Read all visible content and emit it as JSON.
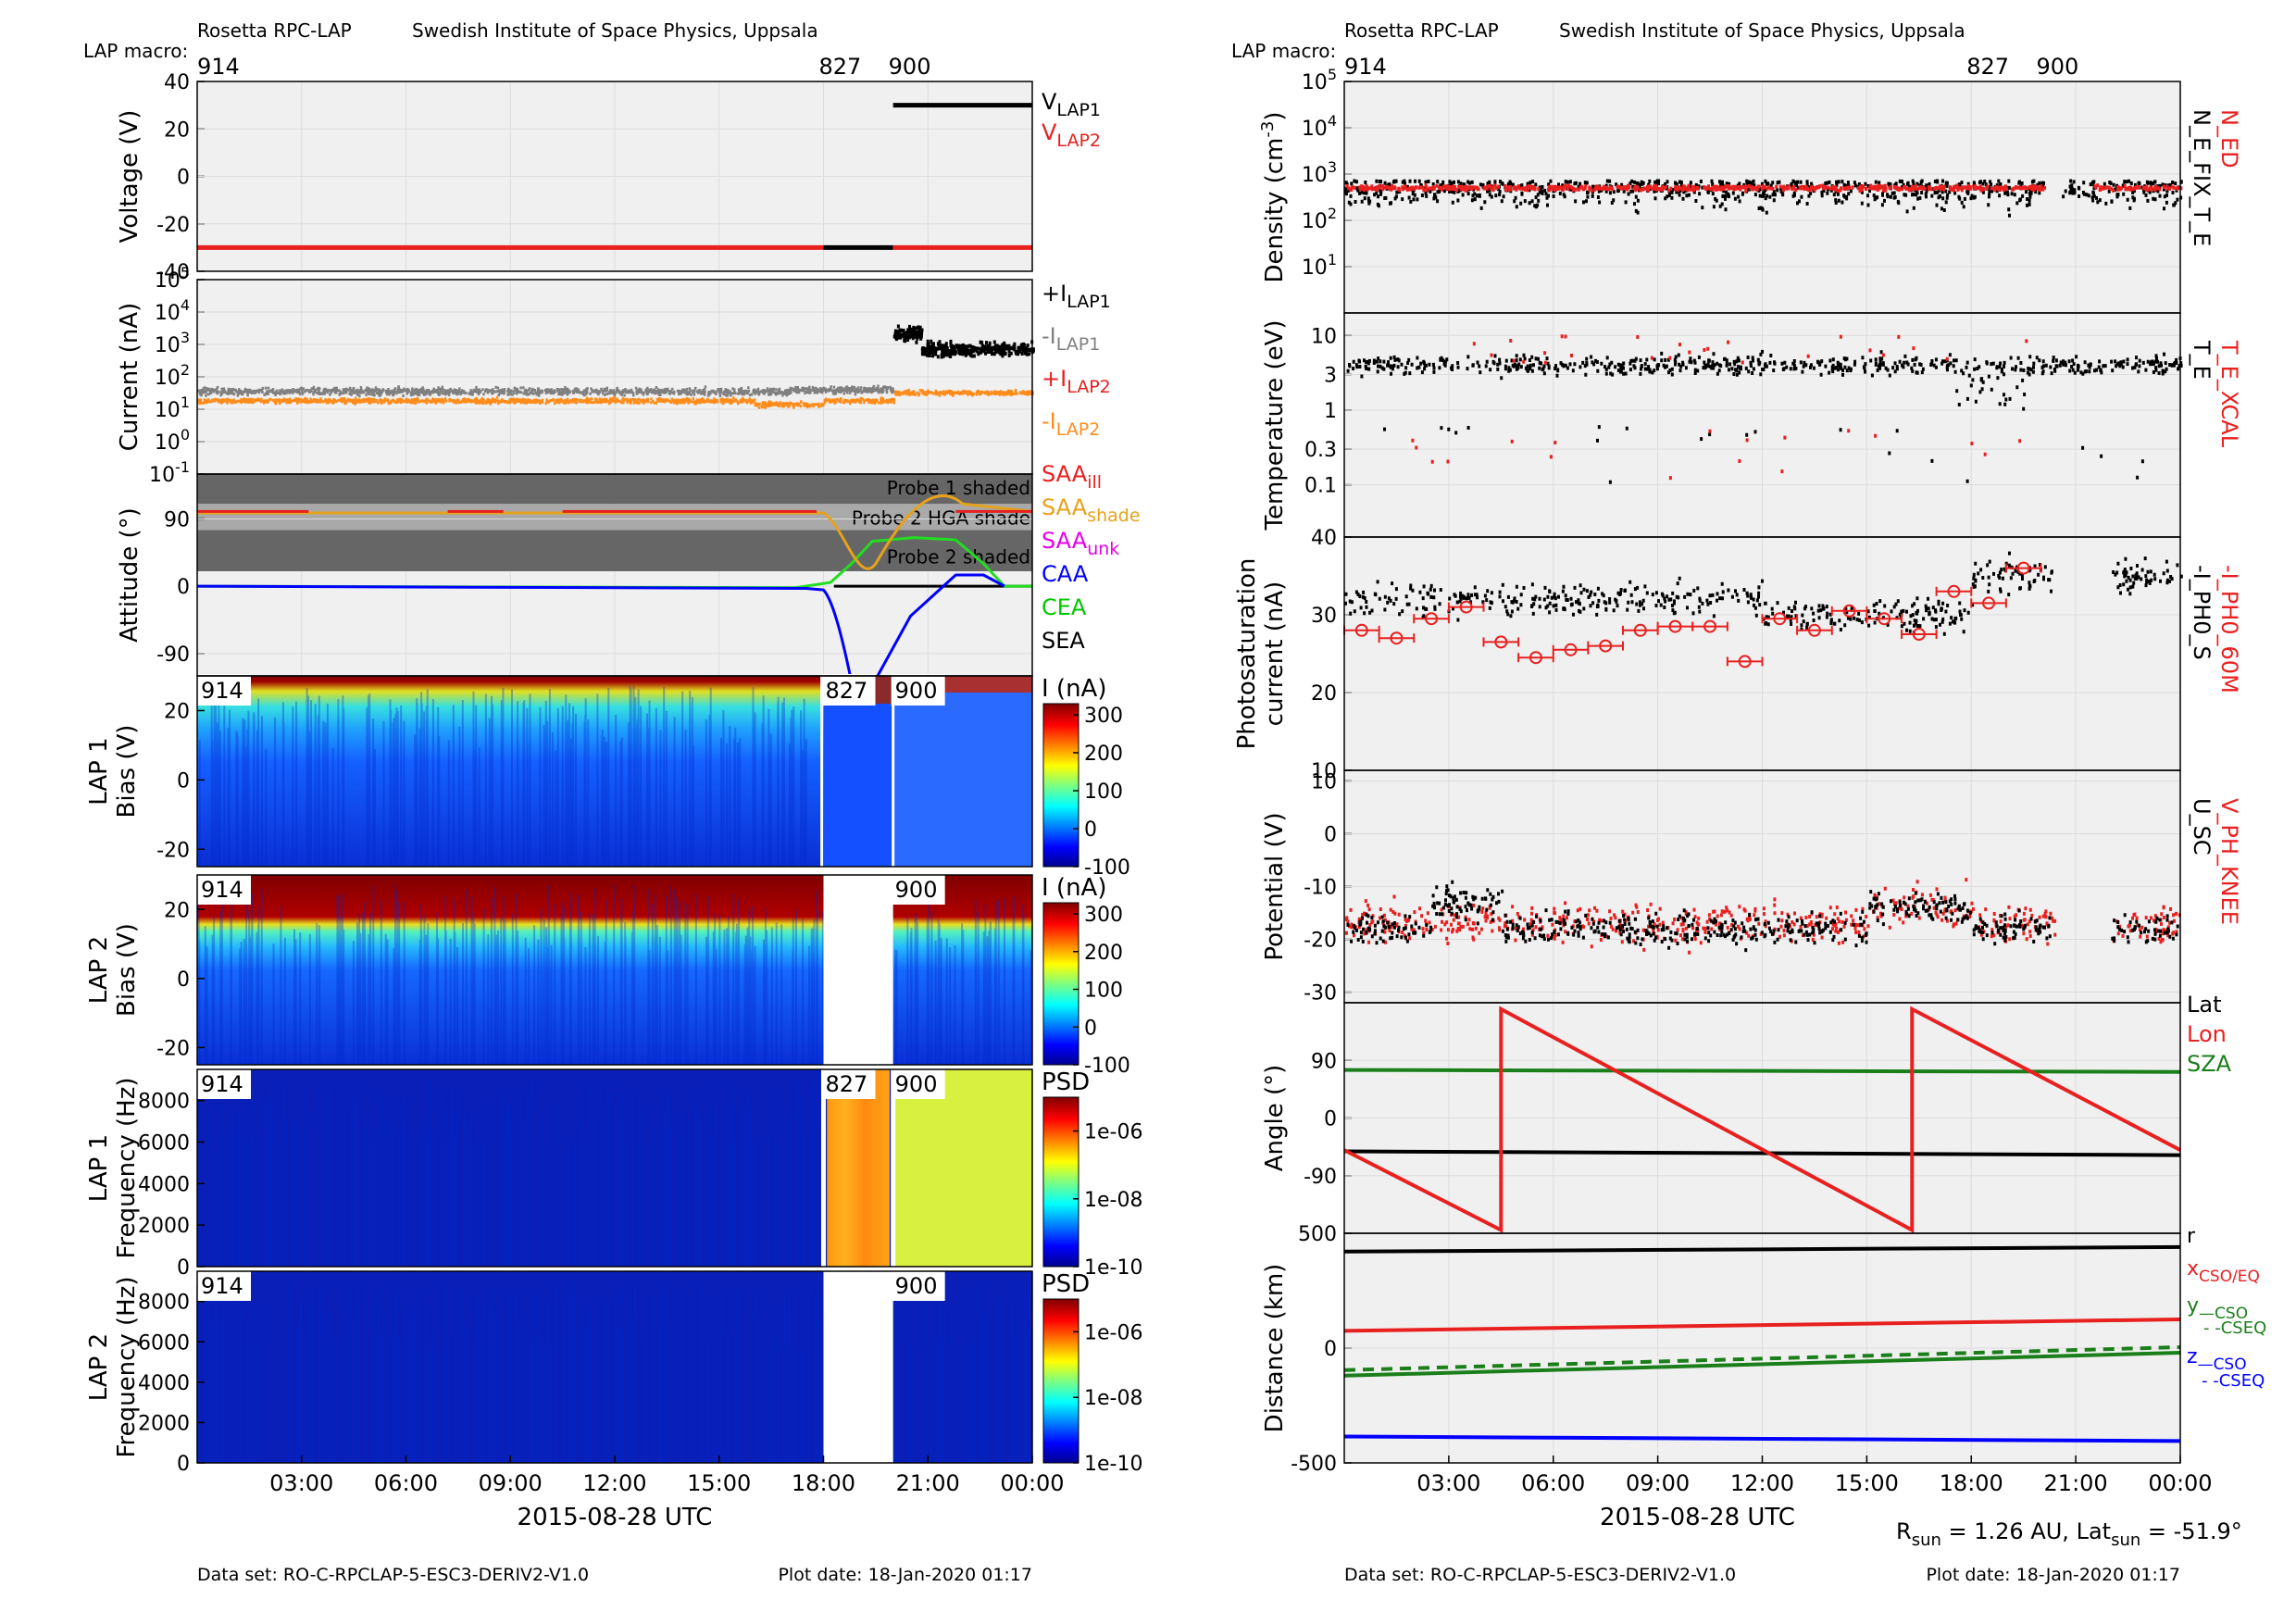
{
  "header": {
    "left_title": "Rosetta RPC-LAP",
    "left_institute": "Swedish Institute of Space Physics, Uppsala",
    "right_title": "Rosetta RPC-LAP",
    "right_institute": "Swedish Institute of Space Physics, Uppsala",
    "macro_label": "LAP macro:",
    "macros": [
      {
        "label": "914",
        "hour": 0
      },
      {
        "label": "827",
        "hour": 18
      },
      {
        "label": "900",
        "hour": 20
      }
    ]
  },
  "footer": {
    "dataset": "Data set: RO-C-RPCLAP-5-ESC3-DERIV2-V1.0",
    "plot_date": "Plot date: 18-Jan-2020 01:17",
    "xlabel": "2015-08-28 UTC",
    "rsun_text": "R",
    "rsun_sub": "sun",
    "rsun_val": " = 1.26 AU, Lat",
    "lat_sub": "sun",
    "lat_val": " = -51.9°"
  },
  "time_ticks": [
    "03:00",
    "06:00",
    "09:00",
    "12:00",
    "15:00",
    "18:00",
    "21:00",
    "00:00"
  ],
  "colors": {
    "panel_bg": "#f0f0f0",
    "red": "#e8201f",
    "black": "#000000",
    "gray": "#808080",
    "orange": "#ff8c1a",
    "green": "#00c800",
    "dkgreen": "#1a7f1a",
    "blue": "#0000ff",
    "magenta": "#e600e6",
    "gold": "#e6a21a",
    "shade": "#555555"
  },
  "chart_data": [
    {
      "id": "voltage",
      "type": "line",
      "ylabel": "Voltage (V)",
      "ylim": [
        -40,
        40
      ],
      "yticks": [
        "40",
        "20",
        "0",
        "-20",
        "-40"
      ],
      "legend": [
        {
          "name": "V",
          "sub": "LAP1",
          "color": "black"
        },
        {
          "name": "V",
          "sub": "LAP2",
          "color": "red"
        }
      ],
      "series": [
        {
          "name": "VLAP1",
          "color": "black",
          "segments": [
            [
              20,
              24,
              30
            ],
            [
              18,
              20,
              -30
            ]
          ]
        },
        {
          "name": "VLAP2",
          "color": "red",
          "segments": [
            [
              0,
              18,
              -30
            ],
            [
              20,
              24,
              -30
            ]
          ]
        }
      ]
    },
    {
      "id": "current",
      "type": "scatter",
      "ylabel": "Current (nA)",
      "yscale": "log",
      "ylim": [
        0.1,
        100000
      ],
      "yticks": [
        {
          "base": "10",
          "exp": "5"
        },
        {
          "base": "10",
          "exp": "4"
        },
        {
          "base": "10",
          "exp": "3"
        },
        {
          "base": "10",
          "exp": "2"
        },
        {
          "base": "10",
          "exp": "1"
        },
        {
          "base": "10",
          "exp": "0"
        },
        {
          "base": "10",
          "exp": "-1"
        }
      ],
      "legend": [
        {
          "name": "+I",
          "sub": "LAP1",
          "color": "black"
        },
        {
          "name": "-I",
          "sub": "LAP1",
          "color": "gray"
        },
        {
          "name": "+I",
          "sub": "LAP2",
          "color": "red"
        },
        {
          "name": "-I",
          "sub": "LAP2",
          "color": "orange"
        }
      ],
      "series": [
        {
          "name": "+ILAP1",
          "color": "black",
          "from": 20.0,
          "to": 24,
          "level": 800
        },
        {
          "name": "-ILAP1",
          "color": "gray",
          "from": 0,
          "to": 20,
          "level": 35
        },
        {
          "name": "-ILAP2",
          "color": "orange",
          "from": 0,
          "to": 24,
          "level": 20
        }
      ]
    },
    {
      "id": "attitude",
      "type": "line",
      "ylabel": "Attitude (°)",
      "ylim": [
        -120,
        150
      ],
      "yticks": [
        "90",
        "0",
        "-90"
      ],
      "shaded_bands": [
        {
          "text": "Probe 1 shaded",
          "from": 110,
          "to": 150
        },
        {
          "text": "Probe 2 HGA shade",
          "from": 65,
          "to": 110
        },
        {
          "text": "Probe 2 shaded",
          "from": 20,
          "to": 70
        }
      ],
      "legend": [
        {
          "name": "SAA",
          "sub": "ill",
          "color": "red"
        },
        {
          "name": "SAA",
          "sub": "shade",
          "color": "gold"
        },
        {
          "name": "SAA",
          "sub": "unk",
          "color": "magenta"
        },
        {
          "name": "CAA",
          "sub": "",
          "color": "blue"
        },
        {
          "name": "CEA",
          "sub": "",
          "color": "green"
        },
        {
          "name": "SEA",
          "sub": "",
          "color": "black"
        }
      ]
    },
    {
      "id": "lap1_bias",
      "type": "heatmap",
      "ylabel": "LAP 1\nBias (V)",
      "ylim": [
        -25,
        30
      ],
      "yticks": [
        "20",
        "0",
        "-20"
      ],
      "colorbar": {
        "label": "I (nA)",
        "ticks": [
          "300",
          "200",
          "100",
          "0",
          "-100"
        ]
      },
      "macro_tags": [
        "914",
        "827",
        "900"
      ]
    },
    {
      "id": "lap2_bias",
      "type": "heatmap",
      "ylabel": "LAP 2\nBias (V)",
      "ylim": [
        -25,
        30
      ],
      "yticks": [
        "20",
        "0",
        "-20"
      ],
      "colorbar": {
        "label": "I (nA)",
        "ticks": [
          "300",
          "200",
          "100",
          "0",
          "-100"
        ]
      },
      "macro_tags": [
        "914",
        "900"
      ]
    },
    {
      "id": "lap1_freq",
      "type": "heatmap",
      "ylabel": "LAP 1\nFrequency (Hz)",
      "ylim": [
        0,
        9500
      ],
      "yticks": [
        "8000",
        "6000",
        "4000",
        "2000",
        "0"
      ],
      "colorbar": {
        "label": "PSD",
        "ticks": [
          "1e-06",
          "1e-08",
          "1e-10"
        ]
      },
      "macro_tags": [
        "914",
        "827",
        "900"
      ]
    },
    {
      "id": "lap2_freq",
      "type": "heatmap",
      "ylabel": "LAP 2\nFrequency (Hz)",
      "ylim": [
        0,
        9500
      ],
      "yticks": [
        "8000",
        "6000",
        "4000",
        "2000",
        "0"
      ],
      "colorbar": {
        "label": "PSD",
        "ticks": [
          "1e-06",
          "1e-08",
          "1e-10"
        ]
      },
      "macro_tags": [
        "914",
        "900"
      ]
    },
    {
      "id": "density",
      "type": "scatter",
      "ylabel": "Density (cm",
      "ylabel_sup": "-3",
      "ylabel_end": ")",
      "yscale": "log",
      "ylim": [
        1,
        100000
      ],
      "yticks": [
        {
          "base": "10",
          "exp": "5"
        },
        {
          "base": "10",
          "exp": "4"
        },
        {
          "base": "10",
          "exp": "3"
        },
        {
          "base": "10",
          "exp": "2"
        },
        {
          "base": "10",
          "exp": "1"
        }
      ],
      "legend": [
        {
          "name": "N_ED",
          "color": "red"
        },
        {
          "name": "N_E_FIX_T_E",
          "color": "black"
        }
      ]
    },
    {
      "id": "temperature",
      "type": "scatter",
      "ylabel": "Temperature (eV)",
      "yscale": "log",
      "ylim": [
        0.02,
        20
      ],
      "yticks": [
        "10",
        "3",
        "1",
        "0.3",
        "0.1"
      ],
      "legend": [
        {
          "name": "T_E_XCAL",
          "color": "red"
        },
        {
          "name": "T_E",
          "color": "black"
        }
      ]
    },
    {
      "id": "photosat",
      "type": "scatter",
      "ylabel": "Photosaturation\ncurrent (nA)",
      "ylim": [
        10,
        40
      ],
      "yticks": [
        "40",
        "30",
        "20",
        "10"
      ],
      "legend": [
        {
          "name": "-I_PH0_60M",
          "color": "red"
        },
        {
          "name": "-I_PH0_S",
          "color": "black"
        }
      ],
      "series": [
        {
          "name": "-I_PH0_60M",
          "x": [
            0.5,
            1.5,
            2.5,
            3.5,
            4.5,
            5.5,
            6.5,
            7.5,
            8.5,
            9.5,
            10.5,
            11.5,
            12.5,
            13.5,
            14.5,
            15.5,
            16.5,
            17.5,
            18.5,
            19.5
          ],
          "y": [
            28,
            27,
            29.5,
            31,
            26.5,
            24.5,
            25.5,
            26,
            28,
            28.5,
            28.5,
            24,
            29.5,
            28,
            30.5,
            29.5,
            27.5,
            33,
            31.5,
            36
          ]
        }
      ]
    },
    {
      "id": "potential",
      "type": "scatter",
      "ylabel": "Potential (V)",
      "ylim": [
        -32,
        12
      ],
      "yticks": [
        "10",
        "0",
        "-10",
        "-20",
        "-30"
      ],
      "legend": [
        {
          "name": "V_PH_KNEE",
          "color": "red"
        },
        {
          "name": "U_SC",
          "color": "black"
        }
      ]
    },
    {
      "id": "angle",
      "type": "line",
      "ylabel": "Angle (°)",
      "ylim": [
        -180,
        180
      ],
      "yticks": [
        "90",
        "0",
        "-90"
      ],
      "legend": [
        {
          "name": "Lat",
          "color": "black"
        },
        {
          "name": "Lon",
          "color": "red"
        },
        {
          "name": "SZA",
          "color": "dkgreen"
        }
      ],
      "series": [
        {
          "name": "Lat",
          "x": [
            0,
            24
          ],
          "y": [
            -52,
            -58
          ]
        },
        {
          "name": "SZA",
          "x": [
            0,
            24
          ],
          "y": [
            75,
            72
          ]
        },
        {
          "name": "Lon",
          "x": [
            0,
            4.5,
            4.5,
            16.3,
            16.3,
            24
          ],
          "y": [
            -50,
            -175,
            170,
            -175,
            170,
            -50
          ]
        }
      ]
    },
    {
      "id": "distance",
      "type": "line",
      "ylabel": "Distance (km)",
      "ylim": [
        -500,
        500
      ],
      "yticks": [
        "500",
        "0",
        "-500"
      ],
      "legend": [
        {
          "name": "r",
          "sub": "",
          "color": "black"
        },
        {
          "name": "x",
          "sub": "CSO/EQ",
          "color": "red"
        },
        {
          "name": "y",
          "sub": "—CSO",
          "color": "dkgreen"
        },
        {
          "name": "- -CSEQ",
          "sub": "",
          "color": "dkgreen"
        },
        {
          "name": "z",
          "sub": "—CSO",
          "color": "blue"
        },
        {
          "name": "- -CSEQ",
          "sub": "",
          "color": "blue"
        }
      ],
      "series": [
        {
          "name": "r",
          "x": [
            0,
            24
          ],
          "y": [
            420,
            440
          ]
        },
        {
          "name": "x",
          "x": [
            0,
            24
          ],
          "y": [
            75,
            125
          ]
        },
        {
          "name": "y",
          "x": [
            0,
            24
          ],
          "y": [
            -120,
            -20
          ]
        },
        {
          "name": "z",
          "x": [
            0,
            24
          ],
          "y": [
            -385,
            -405
          ]
        }
      ]
    }
  ]
}
